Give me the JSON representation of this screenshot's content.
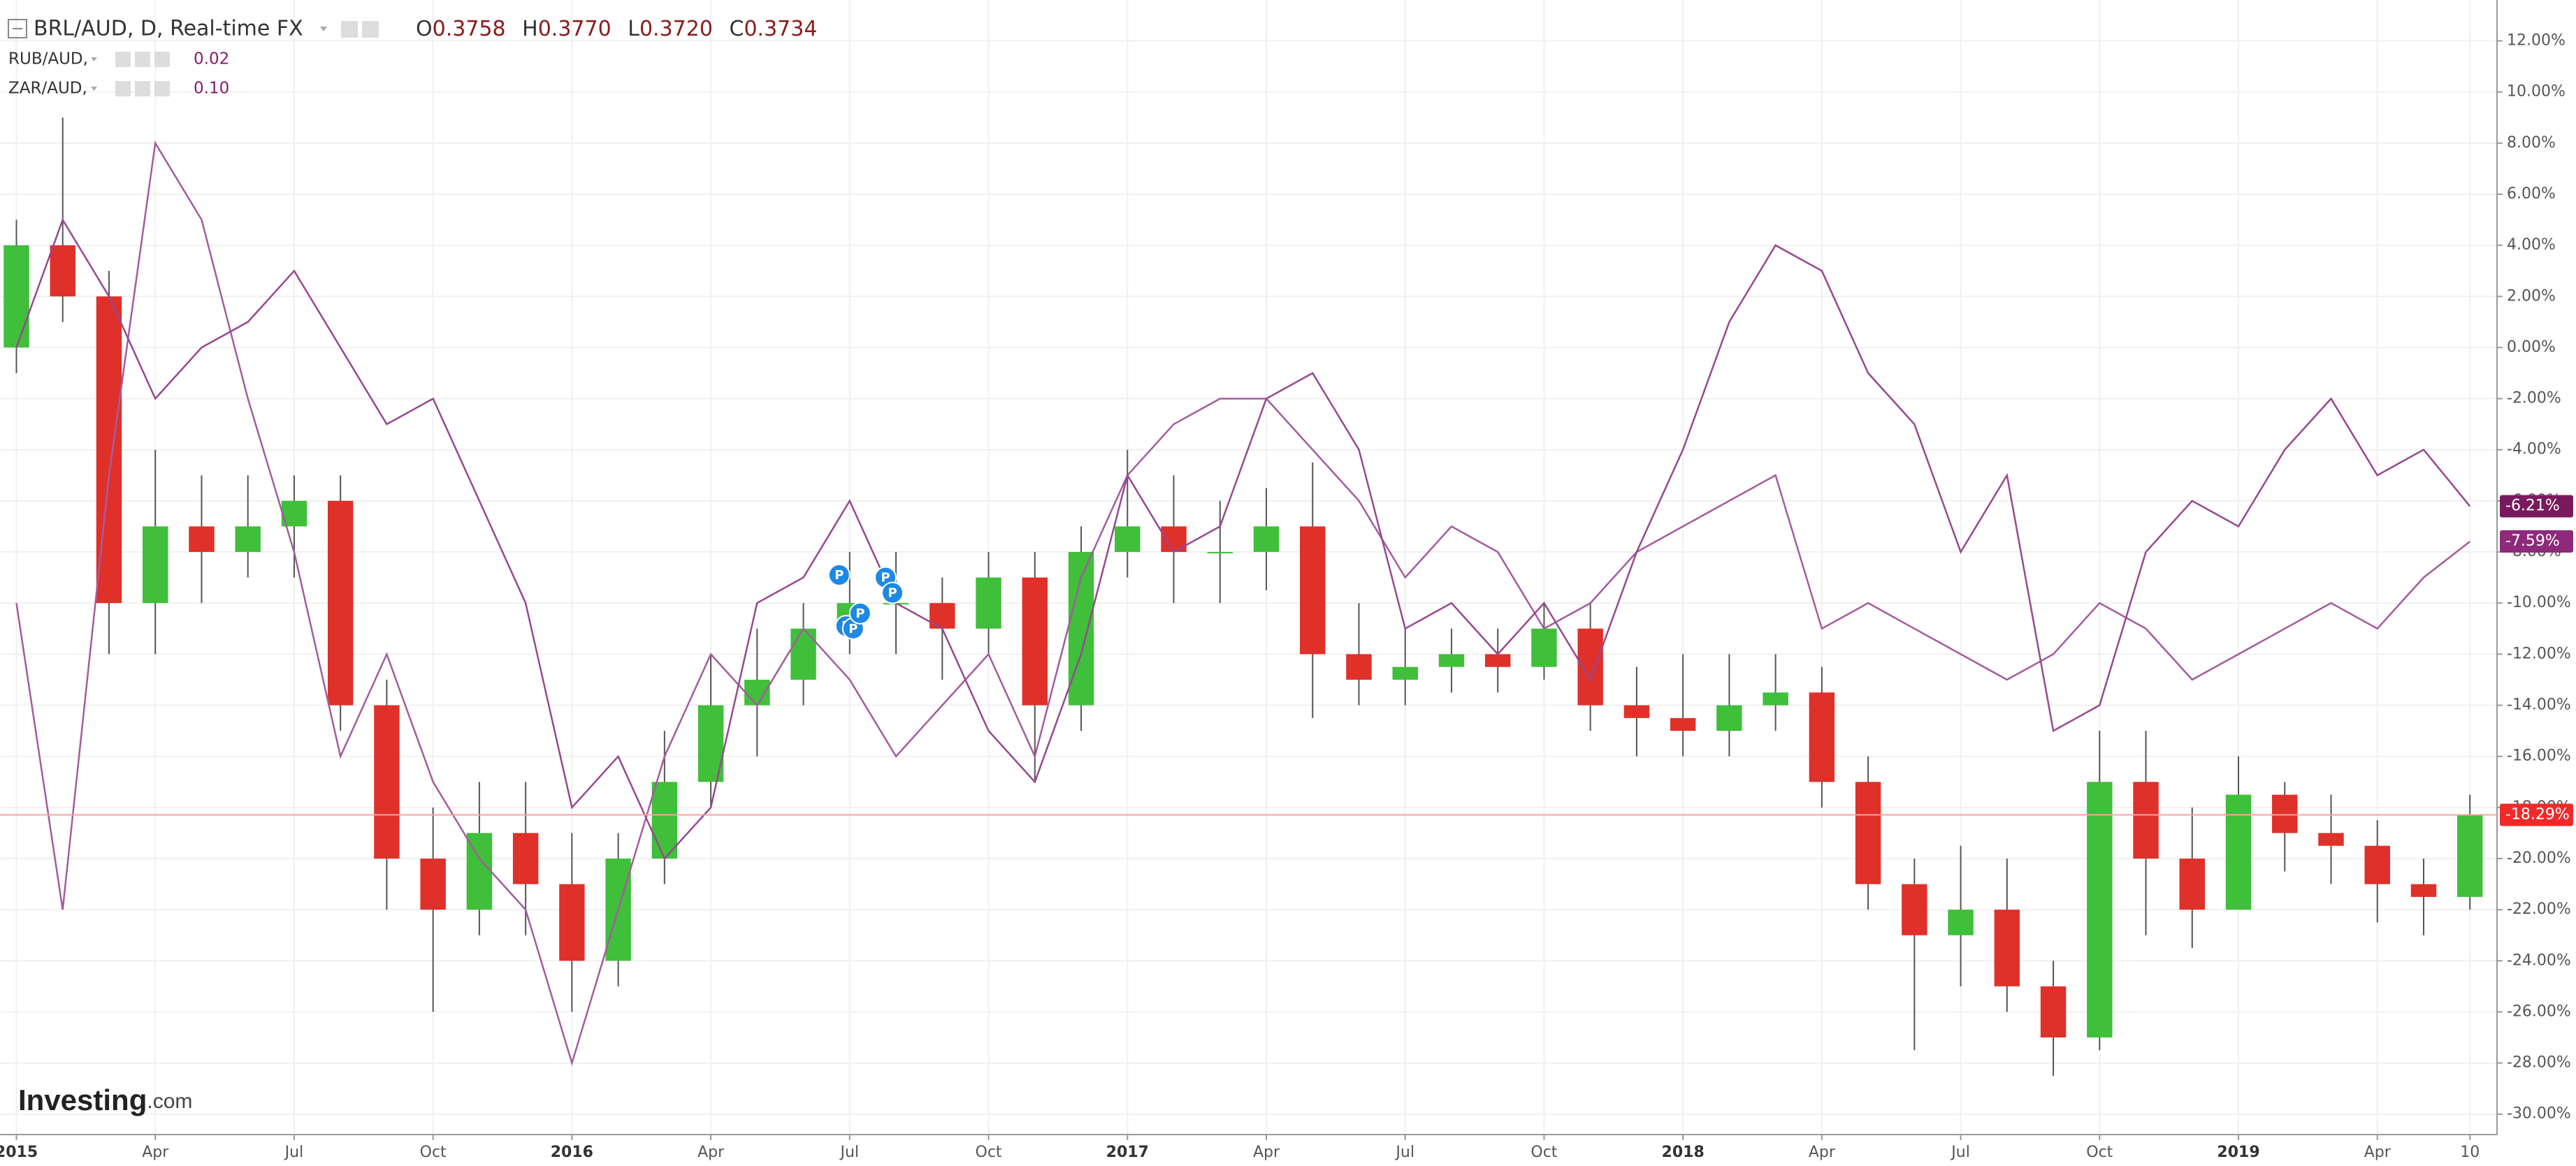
{
  "chart_data": {
    "type": "candlestick",
    "title": "BRL/AUD, D, Real-time FX",
    "ohlc": [
      {
        "label": "O",
        "value": "0.3758"
      },
      {
        "label": "H",
        "value": "0.3770"
      },
      {
        "label": "L",
        "value": "0.3720"
      },
      {
        "label": "C",
        "value": "0.3734"
      }
    ],
    "x": [
      "2015-01",
      "2015-02",
      "2015-03",
      "2015-04",
      "2015-05",
      "2015-06",
      "2015-07",
      "2015-08",
      "2015-09",
      "2015-10",
      "2015-11",
      "2015-12",
      "2016-01",
      "2016-02",
      "2016-03",
      "2016-04",
      "2016-05",
      "2016-06",
      "2016-07",
      "2016-08",
      "2016-09",
      "2016-10",
      "2016-11",
      "2016-12",
      "2017-01",
      "2017-02",
      "2017-03",
      "2017-04",
      "2017-05",
      "2017-06",
      "2017-07",
      "2017-08",
      "2017-09",
      "2017-10",
      "2017-11",
      "2017-12",
      "2018-01",
      "2018-02",
      "2018-03",
      "2018-04",
      "2018-05",
      "2018-06",
      "2018-07",
      "2018-08",
      "2018-09",
      "2018-10",
      "2018-11",
      "2018-12",
      "2019-01",
      "2019-02",
      "2019-03",
      "2019-04",
      "2019-05",
      "2019-06"
    ],
    "series": [
      {
        "type": "candlestick",
        "up_color": "#3fbf3a",
        "down_color": "#e0302a",
        "wick_color": "#555555",
        "open": [
          0,
          4,
          2,
          -10,
          -7,
          -8,
          -7,
          -6,
          -14,
          -20,
          -22,
          -19,
          -21,
          -24,
          -20,
          -17,
          -14,
          -13,
          -11,
          -10,
          -10,
          -11,
          -9,
          -14,
          -8,
          -7,
          -8,
          -8,
          -7,
          -12,
          -13,
          -12.5,
          -12,
          -12.5,
          -11,
          -14,
          -14.5,
          -15,
          -14,
          -13.5,
          -17,
          -21,
          -23,
          -22,
          -25,
          -27,
          -17,
          -20,
          -22,
          -17.5,
          -19,
          -19.5,
          -21,
          -21.5
        ],
        "high": [
          5,
          9,
          3,
          -4,
          -5,
          -5,
          -5,
          -5,
          -13,
          -18,
          -17,
          -17,
          -19,
          -19,
          -15,
          -12,
          -11,
          -10,
          -8,
          -8,
          -9,
          -8,
          -8,
          -7,
          -4,
          -5,
          -6,
          -5.5,
          -4.5,
          -10,
          -11,
          -11,
          -11,
          -10,
          -10,
          -12.5,
          -12,
          -12,
          -12,
          -12.5,
          -16,
          -20,
          -19.5,
          -20,
          -24,
          -15,
          -15,
          -18,
          -16,
          -17,
          -17.5,
          -18.5,
          -20,
          -17.5
        ],
        "low": [
          -1,
          1,
          -12,
          -12,
          -10,
          -9,
          -9,
          -15,
          -22,
          -26,
          -23,
          -23,
          -26,
          -25,
          -21,
          -18,
          -16,
          -14,
          -12,
          -12,
          -13,
          -12,
          -17,
          -15,
          -9,
          -10,
          -10,
          -9.5,
          -14.5,
          -14,
          -14,
          -13.5,
          -13.5,
          -13,
          -15,
          -16,
          -16,
          -16,
          -15,
          -18,
          -22,
          -27.5,
          -25,
          -26,
          -28.5,
          -27.5,
          -23,
          -23.5,
          -22,
          -20.5,
          -21,
          -22.5,
          -23,
          -22
        ],
        "close": [
          4,
          2,
          -10,
          -7,
          -8,
          -7,
          -6,
          -14,
          -20,
          -22,
          -19,
          -21,
          -24,
          -20,
          -17,
          -14,
          -13,
          -11,
          -10,
          -10,
          -11,
          -9,
          -14,
          -8,
          -7,
          -8,
          -8,
          -7,
          -12,
          -13,
          -12.5,
          -12,
          -12.5,
          -11,
          -14,
          -14.5,
          -15,
          -14,
          -13.5,
          -17,
          -21,
          -23,
          -22,
          -25,
          -27,
          -17,
          -20,
          -22,
          -17.5,
          -19,
          -19.5,
          -21,
          -21.5,
          -18.29
        ],
        "last_label": "-18.29%",
        "last_color": "#f02a2a",
        "price_line_color": "#f5a3a3"
      },
      {
        "type": "line",
        "name": "RUB/AUD,",
        "legend_value": "0.02",
        "color": "#a45c9d",
        "values": [
          -10,
          -22,
          -5,
          8,
          5,
          -2,
          -8,
          -16,
          -12,
          -17,
          -20,
          -22,
          -28,
          -22,
          -16,
          -12,
          -14,
          -11,
          -13,
          -16,
          -14,
          -12,
          -16,
          -9,
          -5,
          -3,
          -2,
          -2,
          -4,
          -6,
          -9,
          -7,
          -8,
          -11,
          -10,
          -8,
          -7,
          -6,
          -5,
          -11,
          -10,
          -11,
          -12,
          -13,
          -12,
          -10,
          -11,
          -13,
          -12,
          -11,
          -10,
          -11,
          -9,
          -7.59
        ],
        "last_label": "-7.59%",
        "last_color": "#8e2a7a"
      },
      {
        "type": "line",
        "name": "ZAR/AUD,",
        "legend_value": "0.10",
        "color": "#98488f",
        "values": [
          0,
          5,
          2,
          -2,
          0,
          1,
          3,
          0,
          -3,
          -2,
          -6,
          -10,
          -18,
          -16,
          -20,
          -18,
          -10,
          -9,
          -6,
          -10,
          -11,
          -15,
          -17,
          -12,
          -5,
          -8,
          -7,
          -2,
          -1,
          -4,
          -11,
          -10,
          -12,
          -10,
          -13,
          -8,
          -4,
          1,
          4,
          3,
          -1,
          -3,
          -8,
          -5,
          -15,
          -14,
          -8,
          -6,
          -7,
          -4,
          -2,
          -5,
          -4,
          -6.21
        ],
        "last_label": "-6.21%",
        "last_color": "#7a1a5e"
      }
    ],
    "ylim": [
      -30.8,
      13.6
    ],
    "yticks": [
      {
        "value": 12,
        "label": "12.00%"
      },
      {
        "value": 10,
        "label": "10.00%"
      },
      {
        "value": 8,
        "label": "8.00%"
      },
      {
        "value": 6,
        "label": "6.00%"
      },
      {
        "value": 4,
        "label": "4.00%"
      },
      {
        "value": 2,
        "label": "2.00%"
      },
      {
        "value": 0,
        "label": "0.00%"
      },
      {
        "value": -2,
        "label": "-2.00%"
      },
      {
        "value": -4,
        "label": "-4.00%"
      },
      {
        "value": -6,
        "label": "-6.00%"
      },
      {
        "value": -8,
        "label": "-8.00%"
      },
      {
        "value": -10,
        "label": "-10.00%"
      },
      {
        "value": -12,
        "label": "-12.00%"
      },
      {
        "value": -14,
        "label": "-14.00%"
      },
      {
        "value": -16,
        "label": "-16.00%"
      },
      {
        "value": -18,
        "label": "-18.00%"
      },
      {
        "value": -20,
        "label": "-20.00%"
      },
      {
        "value": -22,
        "label": "-22.00%"
      },
      {
        "value": -24,
        "label": "-24.00%"
      },
      {
        "value": -26,
        "label": "-26.00%"
      },
      {
        "value": -28,
        "label": "-28.00%"
      },
      {
        "value": -30,
        "label": "-30.00%"
      }
    ],
    "xticks": [
      {
        "value": "2015-01",
        "label": "2015"
      },
      {
        "value": "2015-04",
        "label": "Apr"
      },
      {
        "value": "2015-07",
        "label": "Jul"
      },
      {
        "value": "2015-10",
        "label": "Oct"
      },
      {
        "value": "2016-01",
        "label": "2016"
      },
      {
        "value": "2016-04",
        "label": "Apr"
      },
      {
        "value": "2016-07",
        "label": "Jul"
      },
      {
        "value": "2016-10",
        "label": "Oct"
      },
      {
        "value": "2017-01",
        "label": "2017"
      },
      {
        "value": "2017-04",
        "label": "Apr"
      },
      {
        "value": "2017-07",
        "label": "Jul"
      },
      {
        "value": "2017-10",
        "label": "Oct"
      },
      {
        "value": "2018-01",
        "label": "2018"
      },
      {
        "value": "2018-04",
        "label": "Apr"
      },
      {
        "value": "2018-07",
        "label": "Jul"
      },
      {
        "value": "2018-10",
        "label": "Oct"
      },
      {
        "value": "2019-01",
        "label": "2019"
      },
      {
        "value": "2019-04",
        "label": "Apr"
      },
      {
        "value": "2019-06",
        "label": "10"
      }
    ],
    "grid": true,
    "events": [
      {
        "x": "2016-07",
        "y": -8.9,
        "label": "P"
      },
      {
        "x": "2016-07",
        "y": -10.9,
        "label": "P"
      },
      {
        "x": "2016-07",
        "y": -11.0,
        "label": "P"
      },
      {
        "x": "2016-07",
        "y": -10.4,
        "label": "P"
      },
      {
        "x": "2016-08",
        "y": -9.0,
        "label": "P"
      },
      {
        "x": "2016-08",
        "y": -9.6,
        "label": "P"
      }
    ],
    "watermark": {
      "brand": "Investing",
      "suffix": ".com"
    }
  }
}
